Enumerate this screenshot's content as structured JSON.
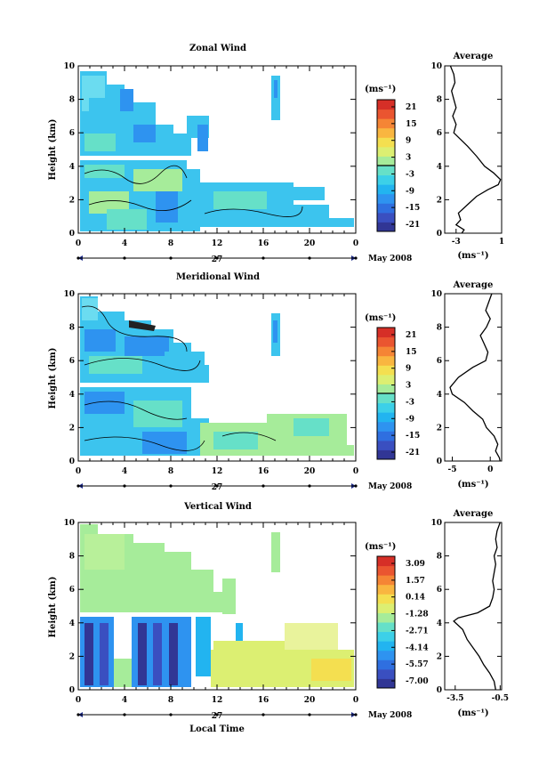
{
  "colors": {
    "scale": [
      "#313695",
      "#3a4fc0",
      "#2f6fe0",
      "#2e93f0",
      "#22b4f0",
      "#3cd0e8",
      "#66e0c8",
      "#a6ec9a",
      "#dcef72",
      "#f4df50",
      "#f9b640",
      "#f58535",
      "#ea5530",
      "#d62f27"
    ]
  },
  "chart_data": [
    {
      "type": "heatmap",
      "title": "Zonal Wind",
      "xlabel": "",
      "ylabel": "Height (km)",
      "x_ticks": [
        "0",
        "4",
        "8",
        "12",
        "16",
        "20",
        "0"
      ],
      "y_ticks": [
        "0",
        "2",
        "4",
        "6",
        "8",
        "10"
      ],
      "xlim": [
        0,
        24
      ],
      "ylim": [
        0,
        10
      ],
      "day_label": "27",
      "date_label": "May 2008",
      "colorbar": {
        "unit": "(ms⁻¹)",
        "labels": [
          "21",
          "15",
          "9",
          "3",
          "-3",
          "-9",
          "-15",
          "-21"
        ],
        "contour_level": "3"
      },
      "profile": {
        "title": "Average",
        "xlabel": "(ms⁻¹)",
        "x_ticks": [
          "-3",
          "1"
        ],
        "y_ticks": [
          "0",
          "2",
          "4",
          "6",
          "8",
          "10"
        ],
        "xlim": [
          -4,
          1
        ],
        "ylim": [
          0,
          10
        ],
        "points": [
          [
            -3.5,
            10
          ],
          [
            -3.2,
            9.5
          ],
          [
            -3.1,
            9.0
          ],
          [
            -3.4,
            8.5
          ],
          [
            -3.2,
            8.0
          ],
          [
            -3.0,
            7.5
          ],
          [
            -3.3,
            7.0
          ],
          [
            -3.0,
            6.5
          ],
          [
            -3.2,
            6.0
          ],
          [
            -2.6,
            5.6
          ],
          [
            -2.0,
            5.2
          ],
          [
            -1.2,
            4.6
          ],
          [
            -0.5,
            4.0
          ],
          [
            0.3,
            3.6
          ],
          [
            0.9,
            3.2
          ],
          [
            0.7,
            2.9
          ],
          [
            -0.2,
            2.6
          ],
          [
            -1.2,
            2.2
          ],
          [
            -2.0,
            1.7
          ],
          [
            -2.8,
            1.2
          ],
          [
            -2.6,
            0.8
          ],
          [
            -3.0,
            0.5
          ],
          [
            -2.3,
            0.2
          ],
          [
            -2.5,
            0.0
          ]
        ]
      }
    },
    {
      "type": "heatmap",
      "title": "Meridional Wind",
      "xlabel": "",
      "ylabel": "Height (km)",
      "x_ticks": [
        "0",
        "4",
        "8",
        "12",
        "16",
        "20",
        "0"
      ],
      "y_ticks": [
        "0",
        "2",
        "4",
        "6",
        "8",
        "10"
      ],
      "xlim": [
        0,
        24
      ],
      "ylim": [
        0,
        10
      ],
      "day_label": "27",
      "date_label": "May 2008",
      "colorbar": {
        "unit": "(ms⁻¹)",
        "labels": [
          "21",
          "15",
          "9",
          "3",
          "-3",
          "-9",
          "-15",
          "-21"
        ],
        "contour_level": "3"
      },
      "profile": {
        "title": "Average",
        "xlabel": "(ms⁻¹)",
        "x_ticks": [
          "-5",
          "0"
        ],
        "y_ticks": [
          "0",
          "2",
          "4",
          "6",
          "8",
          "10"
        ],
        "xlim": [
          -6,
          1.5
        ],
        "ylim": [
          0,
          10
        ],
        "points": [
          [
            0.2,
            10
          ],
          [
            -0.2,
            9.5
          ],
          [
            -0.6,
            9.0
          ],
          [
            0.0,
            8.5
          ],
          [
            -0.5,
            8.0
          ],
          [
            -1.3,
            7.5
          ],
          [
            -0.8,
            7.0
          ],
          [
            -0.3,
            6.5
          ],
          [
            -0.6,
            6.0
          ],
          [
            -2.3,
            5.6
          ],
          [
            -4.2,
            5.0
          ],
          [
            -5.3,
            4.4
          ],
          [
            -5.0,
            4.0
          ],
          [
            -3.4,
            3.5
          ],
          [
            -2.3,
            3.0
          ],
          [
            -1.0,
            2.5
          ],
          [
            -0.5,
            2.0
          ],
          [
            0.5,
            1.5
          ],
          [
            1.0,
            1.0
          ],
          [
            0.7,
            0.6
          ],
          [
            1.2,
            0.2
          ],
          [
            1.3,
            0.0
          ]
        ]
      }
    },
    {
      "type": "heatmap",
      "title": "Vertical Wind",
      "xlabel": "Local Time",
      "ylabel": "Height (km)",
      "x_ticks": [
        "0",
        "4",
        "8",
        "12",
        "16",
        "20",
        "0"
      ],
      "y_ticks": [
        "0",
        "2",
        "4",
        "6",
        "8",
        "10"
      ],
      "xlim": [
        0,
        24
      ],
      "ylim": [
        0,
        10
      ],
      "day_label": "27",
      "date_label": "May 2008",
      "colorbar": {
        "unit": "(ms⁻¹)",
        "labels": [
          "3.09",
          "1.57",
          "0.14",
          "-1.28",
          "-2.71",
          "-4.14",
          "-5.57",
          "-7.00"
        ],
        "contour_level": null
      },
      "profile": {
        "title": "Average",
        "xlabel": "(ms⁻¹)",
        "x_ticks": [
          "-3.5",
          "-0.5"
        ],
        "y_ticks": [
          "0",
          "2",
          "4",
          "6",
          "8",
          "10"
        ],
        "xlim": [
          -4.2,
          -0.4
        ],
        "ylim": [
          0,
          10
        ],
        "points": [
          [
            -0.5,
            10
          ],
          [
            -0.7,
            9.5
          ],
          [
            -0.8,
            9.0
          ],
          [
            -0.7,
            8.5
          ],
          [
            -0.9,
            8.0
          ],
          [
            -0.8,
            7.5
          ],
          [
            -0.9,
            7.0
          ],
          [
            -1.0,
            6.5
          ],
          [
            -0.9,
            6.0
          ],
          [
            -1.0,
            5.5
          ],
          [
            -1.2,
            5.0
          ],
          [
            -2.0,
            4.6
          ],
          [
            -3.3,
            4.3
          ],
          [
            -3.6,
            4.1
          ],
          [
            -3.0,
            3.6
          ],
          [
            -2.7,
            3.0
          ],
          [
            -2.3,
            2.5
          ],
          [
            -1.9,
            2.0
          ],
          [
            -1.6,
            1.5
          ],
          [
            -1.2,
            1.0
          ],
          [
            -0.9,
            0.5
          ],
          [
            -0.8,
            0.0
          ]
        ]
      }
    }
  ]
}
